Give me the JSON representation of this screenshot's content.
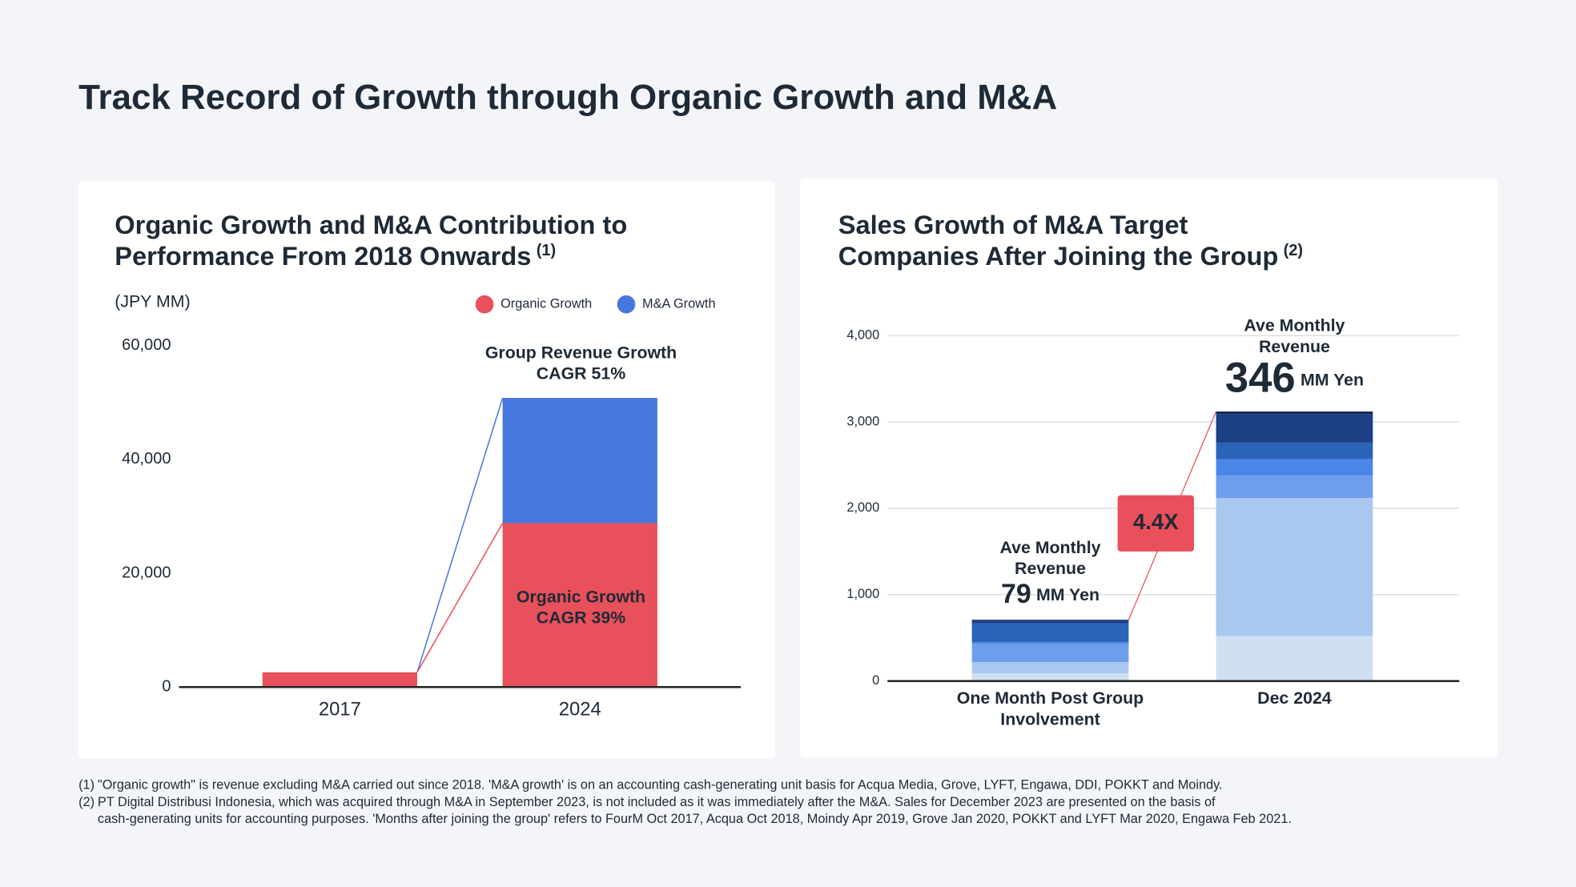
{
  "title": "Track Record of Growth through Organic Growth and M&A",
  "chart_data": [
    {
      "type": "bar",
      "stacked": true,
      "title": [
        "Organic Growth and M&A Contribution to",
        "Performance From 2018 Onwards"
      ],
      "title_note": "(1)",
      "unit_label": "(JPY MM)",
      "categories": [
        "2017",
        "2024"
      ],
      "series": [
        {
          "name": "Organic Growth",
          "color": "#e8505b",
          "values": [
            2600,
            28800
          ]
        },
        {
          "name": "M&A Growth",
          "color": "#4677dd",
          "values": [
            0,
            22000
          ]
        }
      ],
      "ylim": [
        0,
        60000
      ],
      "yticks": [
        0,
        {
          "value": 20000,
          "label": "20,000"
        },
        {
          "value": 40000,
          "label": "40,000"
        },
        {
          "value": 60000,
          "label": "60,000"
        }
      ],
      "grid": false,
      "legend": "top-right",
      "annotations": [
        {
          "lines": [
            "Group Revenue Growth",
            "CAGR 51%"
          ]
        },
        {
          "lines": [
            "Organic Growth",
            "CAGR 39%"
          ]
        }
      ]
    },
    {
      "type": "bar",
      "stacked": true,
      "title": [
        "Sales Growth of M&A Target",
        "Companies After Joining the Group"
      ],
      "title_note": "(2)",
      "categories": [
        [
          "One Month Post Group",
          "Involvement"
        ],
        [
          "Dec 2024"
        ]
      ],
      "series": [
        {
          "color": "#cfe0f2",
          "values": [
            90,
            520
          ]
        },
        {
          "color": "#a9c8ef",
          "values": [
            130,
            1600
          ]
        },
        {
          "color": "#6d9eeb",
          "values": [
            210,
            260
          ]
        },
        {
          "color": "#4a86e8",
          "values": [
            20,
            190
          ]
        },
        {
          "color": "#2a63b8",
          "values": [
            220,
            190
          ]
        },
        {
          "color": "#1c3f85",
          "values": [
            30,
            330
          ]
        },
        {
          "color": "#0f2557",
          "values": [
            10,
            30
          ]
        }
      ],
      "ylim": [
        0,
        4000
      ],
      "yticks": [
        0,
        {
          "value": 1000,
          "label": "1,000"
        },
        {
          "value": 2000,
          "label": "2,000"
        },
        {
          "value": 3000,
          "label": "3,000"
        },
        {
          "value": 4000,
          "label": "4,000"
        }
      ],
      "grid": true,
      "annotations": [
        {
          "lines": [
            "Ave Monthly",
            "Revenue"
          ],
          "value": 79,
          "unit": "MM Yen"
        },
        {
          "lines": [
            "Ave Monthly",
            "Revenue"
          ],
          "value": 346,
          "unit": "MM Yen"
        }
      ],
      "multiplier": "4.4X"
    }
  ],
  "footnotes": [
    {
      "marker": "(1)",
      "lines": [
        "\"Organic growth\" is revenue excluding M&A carried out since 2018. 'M&A growth' is on an accounting cash-generating unit basis for Acqua Media, Grove, LYFT, Engawa, DDI, POKKT and Moindy."
      ]
    },
    {
      "marker": "(2)",
      "lines": [
        "PT Digital Distribusi Indonesia, which was acquired through M&A in September 2023, is not included as it was immediately after the M&A. Sales for December 2023 are presented on the basis of",
        "cash-generating units for accounting purposes. 'Months after joining the group' refers to FourM Oct 2017, Acqua Oct 2018, Moindy Apr 2019, Grove Jan 2020, POKKT and LYFT Mar 2020, Engawa Feb 2021."
      ]
    }
  ]
}
